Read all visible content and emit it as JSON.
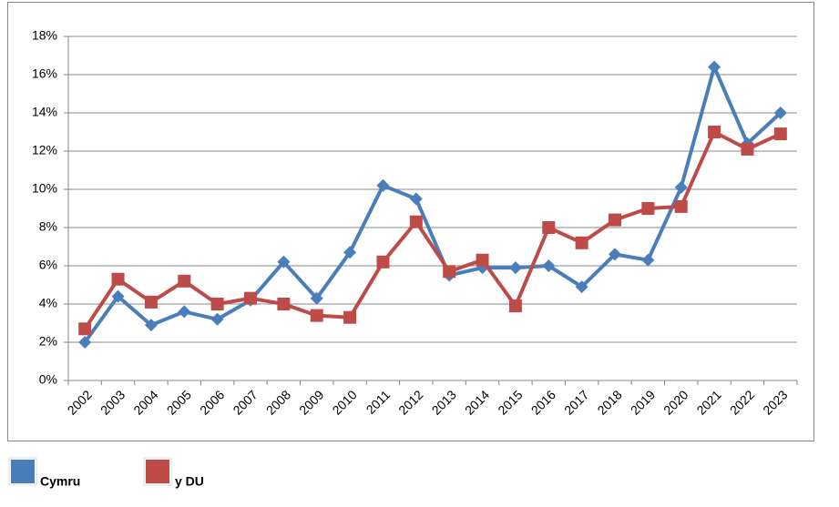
{
  "chart_data": {
    "type": "line",
    "categories": [
      "2002",
      "2003",
      "2004",
      "2005",
      "2006",
      "2007",
      "2008",
      "2009",
      "2010",
      "2011",
      "2012",
      "2013",
      "2014",
      "2015",
      "2016",
      "2017",
      "2018",
      "2019",
      "2020",
      "2021",
      "2022",
      "2023"
    ],
    "series": [
      {
        "name": "Cymru",
        "color": "#4a7ebb",
        "marker": "diamond",
        "values": [
          2.0,
          4.4,
          2.9,
          3.6,
          3.2,
          4.2,
          6.2,
          4.3,
          6.7,
          10.2,
          9.5,
          5.5,
          5.9,
          5.9,
          6.0,
          4.9,
          6.6,
          6.3,
          10.1,
          16.4,
          12.4,
          14.0
        ]
      },
      {
        "name": "y DU",
        "color": "#be4b48",
        "marker": "square",
        "values": [
          2.7,
          5.3,
          4.1,
          5.2,
          4.0,
          4.3,
          4.0,
          3.4,
          3.3,
          6.2,
          8.3,
          5.7,
          6.3,
          3.9,
          8.0,
          7.2,
          8.4,
          9.0,
          9.1,
          13.0,
          12.1,
          12.9
        ]
      }
    ],
    "ylim": [
      0,
      18
    ],
    "yticks": [
      {
        "value": 0,
        "label": "0%"
      },
      {
        "value": 2,
        "label": "2%"
      },
      {
        "value": 4,
        "label": "4%"
      },
      {
        "value": 6,
        "label": "6%"
      },
      {
        "value": 8,
        "label": "8%"
      },
      {
        "value": 10,
        "label": "10%"
      },
      {
        "value": 12,
        "label": "12%"
      },
      {
        "value": 14,
        "label": "14%"
      },
      {
        "value": 16,
        "label": "16%"
      },
      {
        "value": 18,
        "label": "18%"
      }
    ],
    "grid": true,
    "legend": "bottom"
  }
}
